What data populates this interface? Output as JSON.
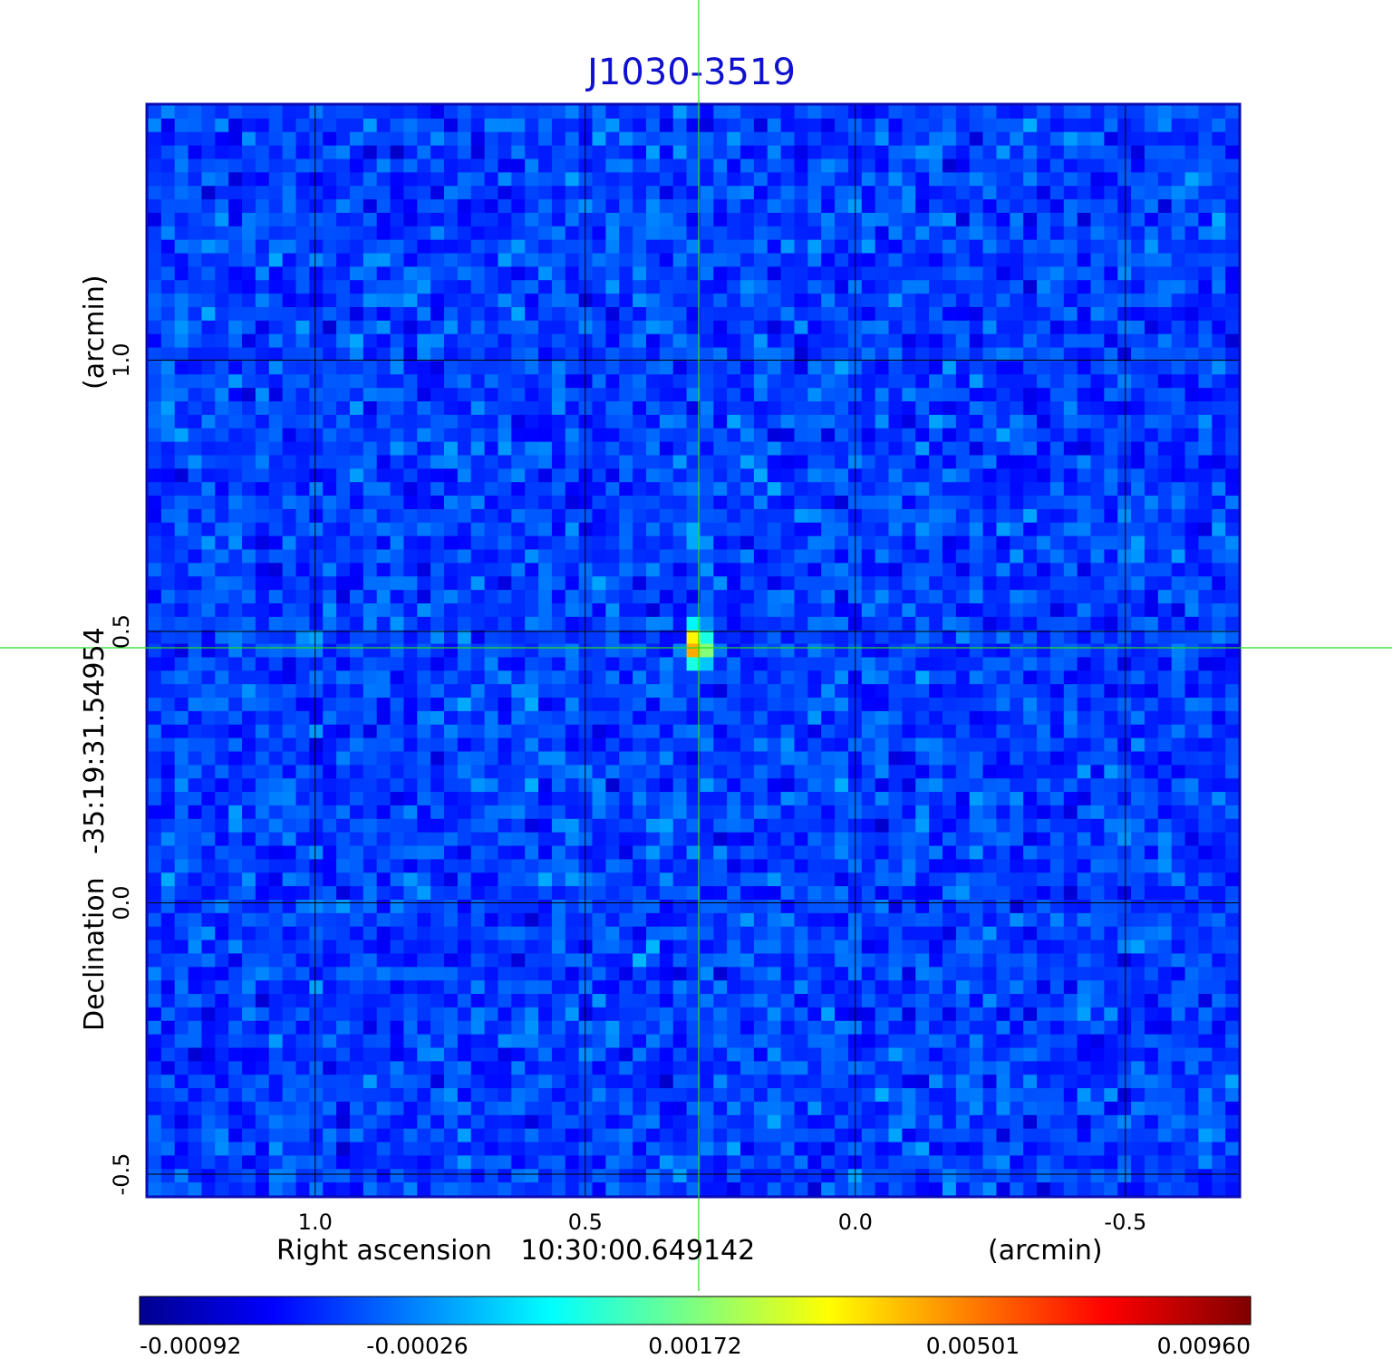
{
  "chart_data": {
    "type": "heatmap",
    "title": "J1030-3519",
    "xlabel": {
      "prefix": "Right ascension",
      "center": "10:30:00.649142",
      "unit": "(arcmin)"
    },
    "ylabel": {
      "prefix": "Declination",
      "center": "-35:19:31.54954",
      "unit": "(arcmin)"
    },
    "x_ticks": [
      {
        "value": 1.0,
        "label": "1.0"
      },
      {
        "value": 0.5,
        "label": "0.5"
      },
      {
        "value": 0.0,
        "label": "0.0"
      },
      {
        "value": -0.5,
        "label": "-0.5"
      }
    ],
    "y_ticks": [
      {
        "value": 1.0,
        "label": "1.0"
      },
      {
        "value": 0.5,
        "label": "0.5"
      },
      {
        "value": 0.0,
        "label": "0.0"
      },
      {
        "value": -0.5,
        "label": "-0.5"
      }
    ],
    "xlim": [
      1.31,
      -0.71
    ],
    "ylim": [
      -0.54,
      1.47
    ],
    "x_reversed": true,
    "grid": true,
    "crosshair": {
      "x": 0.29,
      "y": 0.47
    },
    "source_peak": {
      "x": 0.29,
      "y": 0.47,
      "value": 0.0096
    },
    "colorbar": {
      "min": -0.00092,
      "max": 0.0096,
      "tick_labels": [
        "-0.00092",
        "-0.00026",
        "0.00172",
        "0.00501",
        "0.00960"
      ],
      "colormap": "jet"
    },
    "colors": {
      "title": "#1010d0",
      "frame": "#0a0ab4",
      "crosshair": "#22dd22",
      "grid": "#000000"
    }
  }
}
